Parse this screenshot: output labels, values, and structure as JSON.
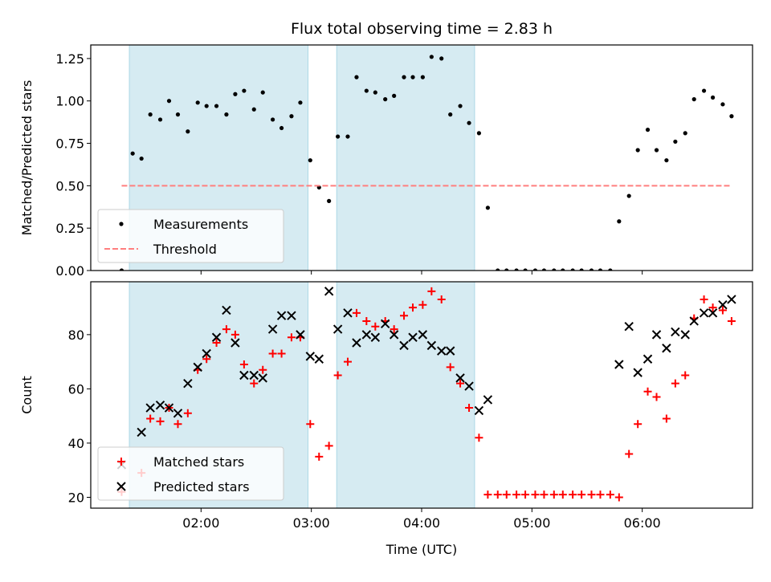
{
  "chart_data": {
    "title": "Flux total observing time = 2.83 h",
    "xlabel": "Time (UTC)",
    "x_unit": "hours UTC",
    "xlim": [
      1.0,
      7.0
    ],
    "x_ticks": [
      {
        "value": 2.0,
        "label": "02:00"
      },
      {
        "value": 3.0,
        "label": "03:00"
      },
      {
        "value": 4.0,
        "label": "04:00"
      },
      {
        "value": 5.0,
        "label": "05:00"
      },
      {
        "value": 6.0,
        "label": "06:00"
      }
    ],
    "shaded_intervals": [
      [
        1.35,
        2.97
      ],
      [
        3.23,
        4.48
      ]
    ],
    "shade_color": "#add8e6",
    "panels": [
      {
        "id": "ratio",
        "type": "scatter",
        "ylabel": "Matched/Predicted stars",
        "ylim": [
          0.0,
          1.33
        ],
        "y_ticks": [
          0.0,
          0.25,
          0.5,
          0.75,
          1.0,
          1.25
        ],
        "y_tick_labels": [
          "0.00",
          "0.25",
          "0.50",
          "0.75",
          "1.00",
          "1.25"
        ],
        "legend_position": "lower left",
        "series": [
          {
            "name": "Measurements",
            "marker": "dot",
            "color": "#000000",
            "points": [
              [
                1.28,
                0.0
              ],
              [
                1.38,
                0.69
              ],
              [
                1.46,
                0.66
              ],
              [
                1.54,
                0.92
              ],
              [
                1.63,
                0.89
              ],
              [
                1.71,
                1.0
              ],
              [
                1.79,
                0.92
              ],
              [
                1.88,
                0.82
              ],
              [
                1.97,
                0.99
              ],
              [
                2.05,
                0.97
              ],
              [
                2.14,
                0.97
              ],
              [
                2.23,
                0.92
              ],
              [
                2.31,
                1.04
              ],
              [
                2.39,
                1.06
              ],
              [
                2.48,
                0.95
              ],
              [
                2.56,
                1.05
              ],
              [
                2.65,
                0.89
              ],
              [
                2.73,
                0.84
              ],
              [
                2.82,
                0.91
              ],
              [
                2.9,
                0.99
              ],
              [
                2.99,
                0.65
              ],
              [
                3.07,
                0.49
              ],
              [
                3.16,
                0.41
              ],
              [
                3.24,
                0.79
              ],
              [
                3.33,
                0.79
              ],
              [
                3.41,
                1.14
              ],
              [
                3.5,
                1.06
              ],
              [
                3.58,
                1.05
              ],
              [
                3.67,
                1.01
              ],
              [
                3.75,
                1.03
              ],
              [
                3.84,
                1.14
              ],
              [
                3.92,
                1.14
              ],
              [
                4.01,
                1.14
              ],
              [
                4.09,
                1.26
              ],
              [
                4.18,
                1.25
              ],
              [
                4.26,
                0.92
              ],
              [
                4.35,
                0.97
              ],
              [
                4.43,
                0.87
              ],
              [
                4.52,
                0.81
              ],
              [
                4.6,
                0.37
              ],
              [
                4.69,
                0.0
              ],
              [
                4.77,
                0.0
              ],
              [
                4.86,
                0.0
              ],
              [
                4.94,
                0.0
              ],
              [
                5.03,
                0.0
              ],
              [
                5.11,
                0.0
              ],
              [
                5.2,
                0.0
              ],
              [
                5.28,
                0.0
              ],
              [
                5.37,
                0.0
              ],
              [
                5.45,
                0.0
              ],
              [
                5.54,
                0.0
              ],
              [
                5.62,
                0.0
              ],
              [
                5.71,
                0.0
              ],
              [
                5.79,
                0.29
              ],
              [
                5.88,
                0.44
              ],
              [
                5.96,
                0.71
              ],
              [
                6.05,
                0.83
              ],
              [
                6.13,
                0.71
              ],
              [
                6.22,
                0.65
              ],
              [
                6.3,
                0.76
              ],
              [
                6.39,
                0.81
              ],
              [
                6.47,
                1.01
              ],
              [
                6.56,
                1.06
              ],
              [
                6.64,
                1.02
              ],
              [
                6.73,
                0.98
              ],
              [
                6.81,
                0.91
              ]
            ]
          },
          {
            "name": "Threshold",
            "style": "dashed",
            "color": "#ff7f7f",
            "x": [
              1.28,
              6.81
            ],
            "y": [
              0.5,
              0.5
            ]
          }
        ]
      },
      {
        "id": "counts",
        "type": "scatter",
        "ylabel": "Count",
        "ylim": [
          16.0,
          99.5
        ],
        "y_ticks": [
          20,
          40,
          60,
          80
        ],
        "y_tick_labels": [
          "20",
          "40",
          "60",
          "80"
        ],
        "legend_position": "lower left",
        "series": [
          {
            "name": "Matched stars",
            "marker": "plus",
            "color": "#ff0000",
            "points": [
              [
                1.28,
                22
              ],
              [
                1.46,
                29
              ],
              [
                1.54,
                49
              ],
              [
                1.63,
                48
              ],
              [
                1.71,
                53
              ],
              [
                1.79,
                47
              ],
              [
                1.88,
                51
              ],
              [
                1.97,
                67
              ],
              [
                2.05,
                71
              ],
              [
                2.14,
                77
              ],
              [
                2.23,
                82
              ],
              [
                2.31,
                80
              ],
              [
                2.39,
                69
              ],
              [
                2.48,
                62
              ],
              [
                2.56,
                67
              ],
              [
                2.65,
                73
              ],
              [
                2.73,
                73
              ],
              [
                2.82,
                79
              ],
              [
                2.9,
                79
              ],
              [
                2.99,
                47
              ],
              [
                3.07,
                35
              ],
              [
                3.16,
                39
              ],
              [
                3.24,
                65
              ],
              [
                3.33,
                70
              ],
              [
                3.41,
                88
              ],
              [
                3.5,
                85
              ],
              [
                3.58,
                83
              ],
              [
                3.67,
                85
              ],
              [
                3.75,
                82
              ],
              [
                3.84,
                87
              ],
              [
                3.92,
                90
              ],
              [
                4.01,
                91
              ],
              [
                4.09,
                96
              ],
              [
                4.18,
                93
              ],
              [
                4.26,
                68
              ],
              [
                4.35,
                62
              ],
              [
                4.43,
                53
              ],
              [
                4.52,
                42
              ],
              [
                4.6,
                21
              ],
              [
                4.69,
                21
              ],
              [
                4.77,
                21
              ],
              [
                4.86,
                21
              ],
              [
                4.94,
                21
              ],
              [
                5.03,
                21
              ],
              [
                5.11,
                21
              ],
              [
                5.2,
                21
              ],
              [
                5.28,
                21
              ],
              [
                5.37,
                21
              ],
              [
                5.45,
                21
              ],
              [
                5.54,
                21
              ],
              [
                5.62,
                21
              ],
              [
                5.71,
                21
              ],
              [
                5.79,
                20
              ],
              [
                5.88,
                36
              ],
              [
                5.96,
                47
              ],
              [
                6.05,
                59
              ],
              [
                6.13,
                57
              ],
              [
                6.22,
                49
              ],
              [
                6.3,
                62
              ],
              [
                6.39,
                65
              ],
              [
                6.47,
                86
              ],
              [
                6.56,
                93
              ],
              [
                6.64,
                90
              ],
              [
                6.73,
                89
              ],
              [
                6.81,
                85
              ]
            ]
          },
          {
            "name": "Predicted stars",
            "marker": "x",
            "color": "#000000",
            "points": [
              [
                1.28,
                32
              ],
              [
                1.46,
                44
              ],
              [
                1.54,
                53
              ],
              [
                1.63,
                54
              ],
              [
                1.71,
                53
              ],
              [
                1.79,
                51
              ],
              [
                1.88,
                62
              ],
              [
                1.97,
                68
              ],
              [
                2.05,
                73
              ],
              [
                2.14,
                79
              ],
              [
                2.23,
                89
              ],
              [
                2.31,
                77
              ],
              [
                2.39,
                65
              ],
              [
                2.48,
                65
              ],
              [
                2.56,
                64
              ],
              [
                2.65,
                82
              ],
              [
                2.73,
                87
              ],
              [
                2.82,
                87
              ],
              [
                2.9,
                80
              ],
              [
                2.99,
                72
              ],
              [
                3.07,
                71
              ],
              [
                3.16,
                96
              ],
              [
                3.24,
                82
              ],
              [
                3.33,
                88
              ],
              [
                3.41,
                77
              ],
              [
                3.5,
                80
              ],
              [
                3.58,
                79
              ],
              [
                3.67,
                84
              ],
              [
                3.75,
                80
              ],
              [
                3.84,
                76
              ],
              [
                3.92,
                79
              ],
              [
                4.01,
                80
              ],
              [
                4.09,
                76
              ],
              [
                4.18,
                74
              ],
              [
                4.26,
                74
              ],
              [
                4.35,
                64
              ],
              [
                4.43,
                61
              ],
              [
                4.52,
                52
              ],
              [
                4.6,
                56
              ],
              [
                5.79,
                69
              ],
              [
                5.88,
                83
              ],
              [
                5.96,
                66
              ],
              [
                6.05,
                71
              ],
              [
                6.13,
                80
              ],
              [
                6.22,
                75
              ],
              [
                6.3,
                81
              ],
              [
                6.39,
                80
              ],
              [
                6.47,
                85
              ],
              [
                6.56,
                88
              ],
              [
                6.64,
                88
              ],
              [
                6.73,
                91
              ],
              [
                6.81,
                93
              ]
            ]
          }
        ]
      }
    ]
  }
}
